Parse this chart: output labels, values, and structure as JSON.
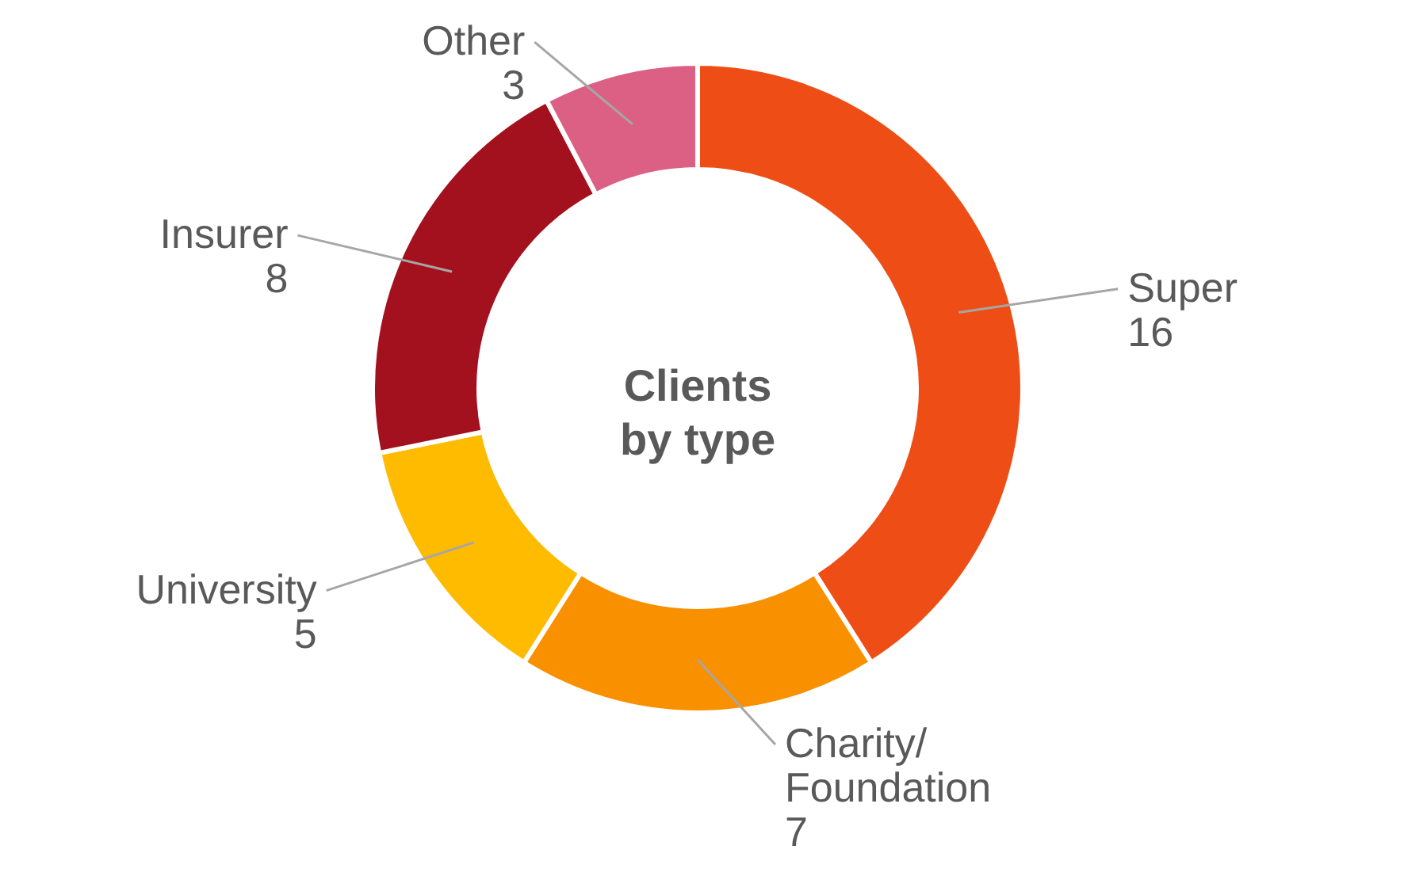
{
  "chart_data": {
    "type": "donut",
    "title": "Clients by type",
    "categories": [
      "Super",
      "Charity/Foundation",
      "University",
      "Insurer",
      "Other"
    ],
    "values": [
      16,
      7,
      5,
      8,
      3
    ],
    "colors": [
      "#ee4e16",
      "#f99000",
      "#ffbb00",
      "#a3111e",
      "#db6084"
    ],
    "data_labels": true
  }
}
